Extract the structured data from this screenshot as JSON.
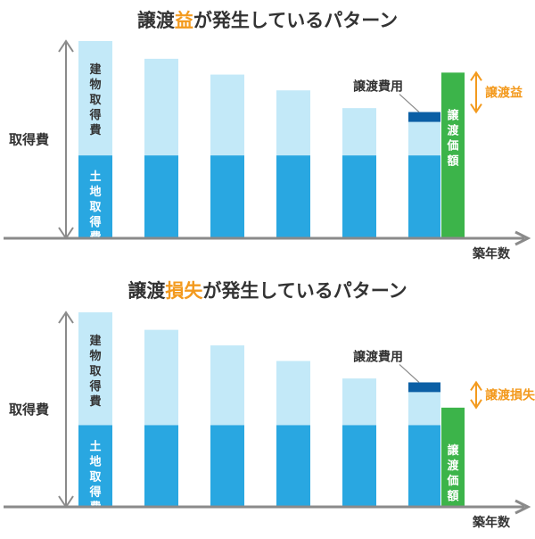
{
  "colors": {
    "building_bar": "#C3E9F8",
    "land_bar": "#29A7E1",
    "expense_bar": "#0B5FA5",
    "price_bar": "#3CB44A",
    "accent": "#F39A1E",
    "axis": "#8A8A8A",
    "text": "#333333",
    "white": "#FFFFFF"
  },
  "panels": [
    {
      "title_parts": [
        "譲渡",
        "益",
        "が発生しているパターン"
      ],
      "y_label": "取得費",
      "x_label": "築年数",
      "building_label": "建物取得費",
      "land_label": "土地取得費",
      "expense_label": "譲渡費用",
      "price_label": "譲渡価額",
      "result_label": "譲渡益",
      "result": "gain",
      "bars": [
        {
          "total": 1.0,
          "land": 0.42
        },
        {
          "total": 0.91,
          "land": 0.42
        },
        {
          "total": 0.83,
          "land": 0.42
        },
        {
          "total": 0.75,
          "land": 0.42
        },
        {
          "total": 0.66,
          "land": 0.42
        }
      ],
      "sale_building": 0.59,
      "sale_expense": 0.05,
      "sale_price": 0.84
    },
    {
      "title_parts": [
        "譲渡",
        "損失",
        "が発生しているパターン"
      ],
      "y_label": "取得費",
      "x_label": "築年数",
      "building_label": "建物取得費",
      "land_label": "土地取得費",
      "expense_label": "譲渡費用",
      "price_label": "譲渡価額",
      "result_label": "譲渡損失",
      "result": "loss",
      "bars": [
        {
          "total": 1.0,
          "land": 0.42
        },
        {
          "total": 0.91,
          "land": 0.42
        },
        {
          "total": 0.83,
          "land": 0.42
        },
        {
          "total": 0.75,
          "land": 0.42
        },
        {
          "total": 0.66,
          "land": 0.42
        }
      ],
      "sale_building": 0.59,
      "sale_expense": 0.05,
      "sale_price": 0.51
    }
  ]
}
